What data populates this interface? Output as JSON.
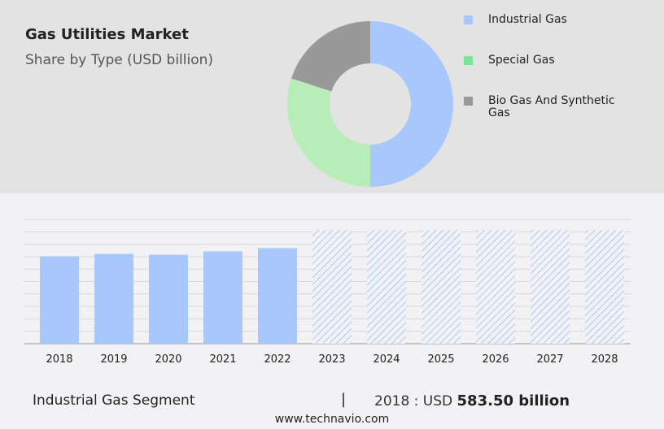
{
  "title": "Gas Utilities Market",
  "subtitle": "Share by Type (USD billion)",
  "footer": {
    "segment": "Industrial Gas Segment",
    "separator": "|",
    "year_prefix": "2018 : USD",
    "value": "583.50 billion",
    "site": "www.technavio.com"
  },
  "chart_data": [
    {
      "type": "pie",
      "donut": true,
      "labels": [
        "Industrial Gas",
        "Special Gas",
        "Bio Gas And Synthetic Gas"
      ],
      "values": [
        50,
        30,
        20
      ],
      "colors": [
        "#a8c8fc",
        "#b8edb8",
        "#999999"
      ],
      "legend_colors": [
        "#a8c8fc",
        "#7ee49a",
        "#999999"
      ],
      "legend": "right"
    },
    {
      "type": "bar",
      "categories": [
        "2018",
        "2019",
        "2020",
        "2021",
        "2022",
        "2023",
        "2024",
        "2025",
        "2026",
        "2027",
        "2028"
      ],
      "values": [
        583.5,
        600,
        594,
        616,
        638,
        null,
        null,
        null,
        null,
        null,
        null
      ],
      "forecast": [
        "2023",
        "2024",
        "2025",
        "2026",
        "2027",
        "2028"
      ],
      "ylim": [
        0,
        830
      ],
      "grid": true,
      "color": "#a8c8fc"
    }
  ]
}
